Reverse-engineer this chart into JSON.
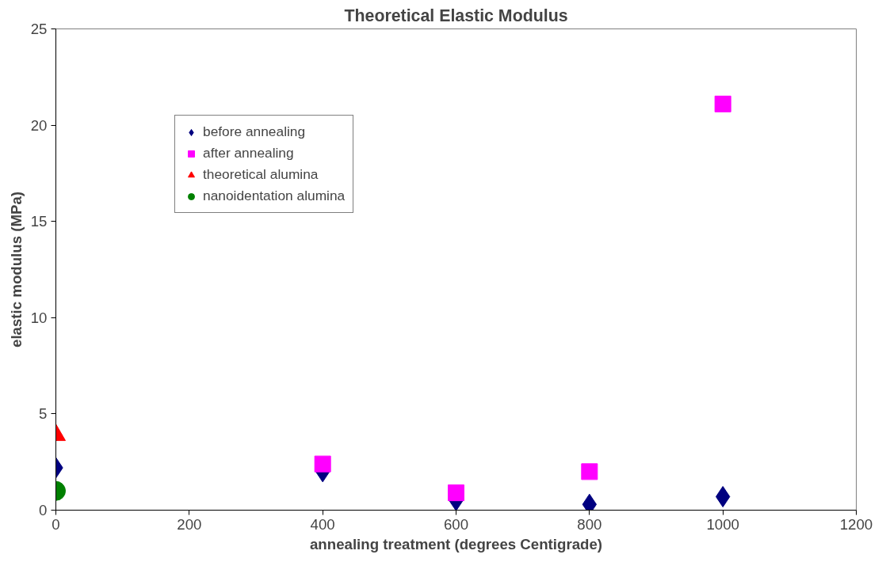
{
  "chart_data": {
    "type": "scatter",
    "title": "Theoretical Elastic Modulus",
    "xlabel": "annealing treatment (degrees Centigrade)",
    "ylabel": "elastic modulus (MPa)",
    "xlim": [
      0,
      1200
    ],
    "xticks": [
      0,
      200,
      400,
      600,
      800,
      1000,
      1200
    ],
    "ylim": [
      0,
      25
    ],
    "yticks": [
      0,
      5,
      10,
      15,
      20,
      25
    ],
    "grid": false,
    "legend": "top left",
    "series": [
      {
        "name": "before annealing",
        "color": "#000080",
        "marker": "diamond",
        "x": [
          0,
          400,
          600,
          800,
          1000
        ],
        "values": [
          2.2,
          2.0,
          0.5,
          0.3,
          0.7
        ]
      },
      {
        "name": "after annealing",
        "color": "#ff00ff",
        "marker": "square",
        "x": [
          400,
          600,
          800,
          1000
        ],
        "values": [
          2.4,
          0.9,
          2.0,
          21.1
        ]
      },
      {
        "name": "theoretical alumina",
        "color": "#ff0000",
        "marker": "triangle",
        "x": [
          0
        ],
        "values": [
          3.9
        ]
      },
      {
        "name": "nanoidentation alumina",
        "color": "#008000",
        "marker": "circle",
        "x": [
          0
        ],
        "values": [
          1.0
        ]
      }
    ]
  }
}
